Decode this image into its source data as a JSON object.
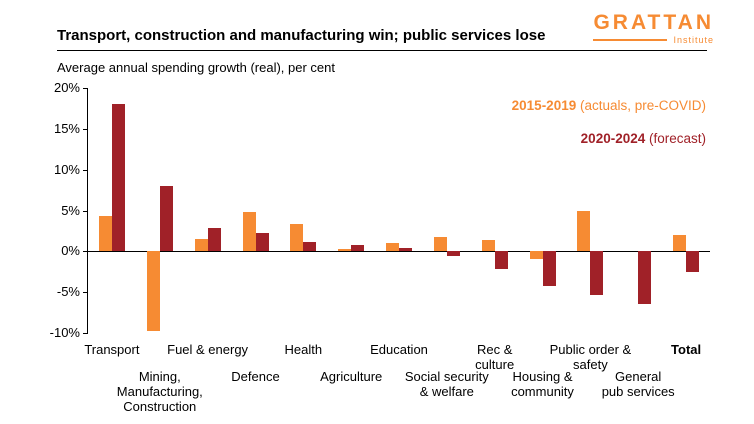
{
  "header": {
    "title": "Transport, construction and manufacturing win; public services lose",
    "subtitle": "Average annual spending growth (real), per cent"
  },
  "logo": {
    "name": "GRATTAN",
    "subname": "Institute"
  },
  "legend": {
    "series1_bold": "2015-2019",
    "series1_rest": " (actuals, pre-COVID)",
    "series2_bold": "2020-2024",
    "series2_rest": " (forecast)"
  },
  "colors": {
    "orange": "#F68B33",
    "red": "#A02128"
  },
  "chart_data": {
    "type": "bar",
    "title": "Transport, construction and manufacturing win; public services lose",
    "subtitle": "Average annual spending growth (real), per cent",
    "categories": [
      "Transport",
      "Mining,\nManufacturing,\nConstruction",
      "Fuel & energy",
      "Defence",
      "Health",
      "Agriculture",
      "Education",
      "Social security\n& welfare",
      "Rec &\nculture",
      "Housing &\ncommunity",
      "Public order &\nsafety",
      "General\npub services",
      "Total"
    ],
    "label_rows": [
      0,
      1,
      0,
      1,
      0,
      1,
      0,
      1,
      0,
      1,
      0,
      1,
      0
    ],
    "label_bold": [
      false,
      false,
      false,
      false,
      false,
      false,
      false,
      false,
      false,
      false,
      false,
      false,
      true
    ],
    "series": [
      {
        "name": "2015-2019 (actuals, pre-COVID)",
        "color": "#F68B33",
        "values": [
          4.3,
          -9.8,
          1.5,
          4.8,
          3.3,
          0.3,
          1.0,
          1.8,
          1.4,
          -0.9,
          5.0,
          0,
          2.0
        ]
      },
      {
        "name": "2020-2024 (forecast)",
        "color": "#A02128",
        "values": [
          18.0,
          8.0,
          2.9,
          2.2,
          1.1,
          0.8,
          0.4,
          -0.6,
          -2.2,
          -4.2,
          -5.3,
          -6.4,
          -2.6
        ]
      }
    ],
    "xlabel": "",
    "ylabel": "Average annual spending growth (real), per cent",
    "ylim": [
      -10,
      20
    ],
    "yticks": [
      20,
      15,
      10,
      5,
      0,
      -5,
      -10
    ],
    "ytick_suffix": "%",
    "grid": false,
    "legend_position": "top-right"
  }
}
